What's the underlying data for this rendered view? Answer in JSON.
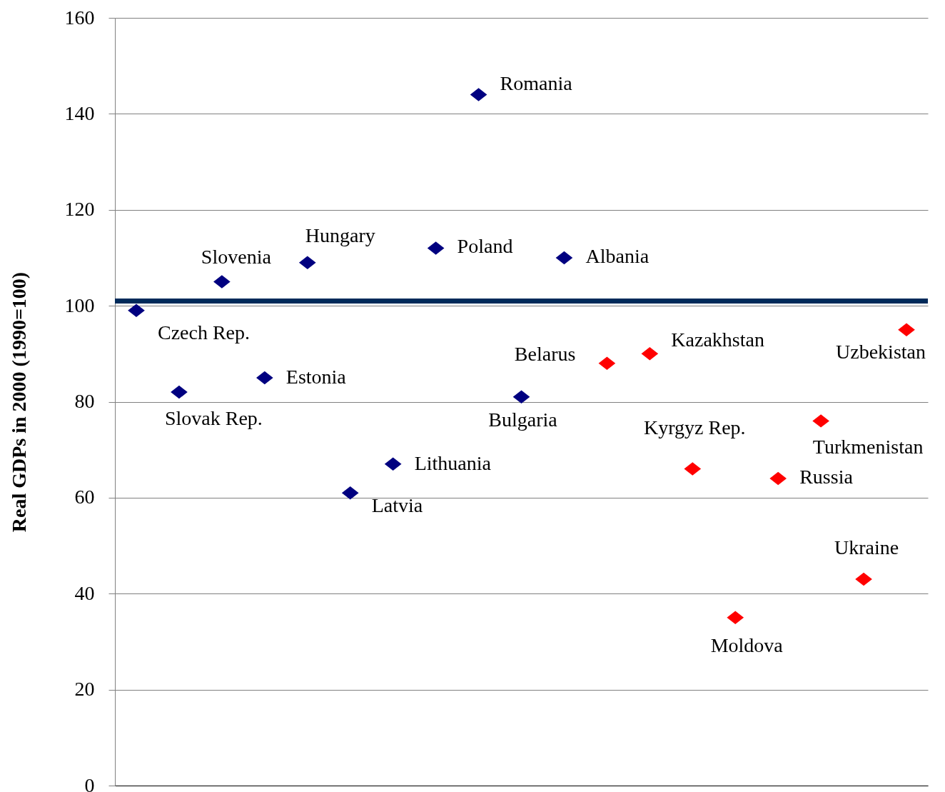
{
  "chart_data": {
    "type": "scatter",
    "ylabel": "Real GDPs in 2000 (1990=100)",
    "categories": [
      null,
      null,
      null,
      null,
      null,
      null,
      null,
      null,
      null,
      null,
      null,
      null,
      null,
      null,
      null,
      null,
      null,
      null,
      null
    ],
    "series": [
      {
        "color": "#000080",
        "values": [
          99,
          82,
          105,
          85,
          109,
          61,
          67,
          112,
          144,
          81,
          110,
          null,
          null,
          null,
          null,
          null,
          null,
          null,
          null
        ],
        "value_labels": [
          "Czech Rep.",
          "Slovak Rep.",
          "Slovenia",
          "Estonia",
          "Hungary",
          "Latvia",
          "Lithuania",
          "Poland",
          "Romania",
          "Bulgaria",
          "Albania",
          null,
          null,
          null,
          null,
          null,
          null,
          null,
          null
        ]
      },
      {
        "color": "#ff0000",
        "values": [
          null,
          null,
          null,
          null,
          null,
          null,
          null,
          null,
          null,
          null,
          null,
          88,
          90,
          66,
          35,
          64,
          76,
          43,
          95
        ],
        "value_labels": [
          null,
          null,
          null,
          null,
          null,
          null,
          null,
          null,
          null,
          null,
          null,
          "Belarus",
          "Kazakhstan",
          "Kyrgyz Rep.",
          "Moldova",
          "Russia",
          "Turkmenistan",
          "Ukraine",
          "Uzbekistan"
        ]
      }
    ],
    "ylim": [
      0,
      160
    ],
    "yticks": [
      0,
      20,
      40,
      60,
      80,
      100,
      120,
      140,
      160
    ],
    "ref_lines": [
      {
        "axis": "y",
        "value": 101,
        "color": "#002a5a"
      }
    ],
    "grid": "y",
    "marker": "diamond",
    "tick_labels": "y"
  }
}
